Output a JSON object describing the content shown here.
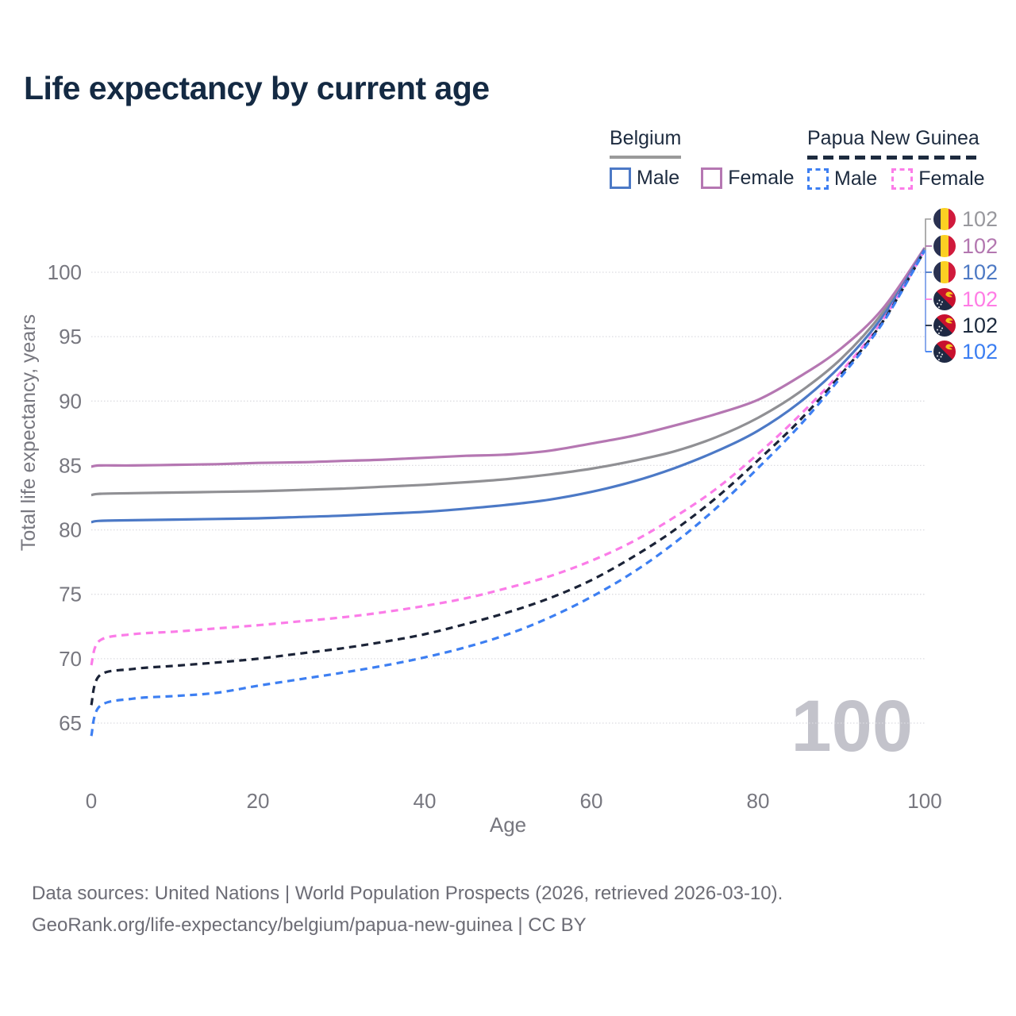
{
  "title": "Life expectancy by current age",
  "legend": {
    "belgium": {
      "label": "Belgium",
      "male": "Male",
      "female": "Female"
    },
    "png": {
      "label": "Papua New Guinea",
      "male": "Male",
      "female": "Female"
    }
  },
  "watermark": "100",
  "footer": {
    "line1": "Data sources: United Nations | World Population Prospects (2026, retrieved 2026-03-10).",
    "line2": "GeoRank.org/life-expectancy/belgium/papua-new-guinea | CC BY"
  },
  "colors": {
    "title_text": "#142a43",
    "legend_text": "#1d2b3f",
    "axis_text": "#77777f",
    "grid": "#dcdce1",
    "footer_text": "#6c6c75",
    "watermark": "#c3c3cb",
    "belgium_underline": "#9a9a9a",
    "png_underline": "#1d2b3f",
    "connector": "#6e95e8",
    "connector_top": "#9a9a9a"
  },
  "chart_data": {
    "type": "line",
    "title": "Life expectancy by current age",
    "xlabel": "Age",
    "ylabel": "Total life expectancy, years",
    "xlim": [
      0,
      100
    ],
    "ylim": [
      63.5,
      103
    ],
    "xticks": [
      0,
      20,
      40,
      60,
      80,
      100
    ],
    "yticks": [
      65,
      70,
      75,
      80,
      85,
      90,
      95,
      100
    ],
    "grid": "horizontal-dotted",
    "legend_position": "top-right",
    "frame_label": "100",
    "x": [
      0,
      1,
      5,
      10,
      15,
      20,
      25,
      30,
      35,
      40,
      45,
      50,
      55,
      60,
      65,
      70,
      75,
      80,
      85,
      90,
      95,
      100
    ],
    "series": [
      {
        "id": "belgium-total",
        "name": "Belgium",
        "country": "Belgium",
        "sex": "both",
        "flag": "belgium",
        "color": "#909094",
        "dash": false,
        "end_label": "102",
        "end_label_color": "#98989d",
        "label_slot": 0,
        "values": [
          82.7,
          82.8,
          82.85,
          82.9,
          82.95,
          83.0,
          83.1,
          83.2,
          83.35,
          83.5,
          83.7,
          83.95,
          84.3,
          84.75,
          85.35,
          86.1,
          87.2,
          88.7,
          90.7,
          93.3,
          96.9,
          101.8
        ]
      },
      {
        "id": "belgium-female",
        "name": "Belgium Female",
        "country": "Belgium",
        "sex": "female",
        "flag": "belgium",
        "color": "#b577b2",
        "dash": false,
        "end_label": "102",
        "end_label_color": "#b377b0",
        "label_slot": 1,
        "values": [
          84.9,
          85.0,
          85.0,
          85.05,
          85.1,
          85.2,
          85.25,
          85.35,
          85.45,
          85.6,
          85.75,
          85.85,
          86.15,
          86.7,
          87.3,
          88.1,
          89.0,
          90.1,
          91.9,
          94.1,
          97.2,
          101.9
        ]
      },
      {
        "id": "belgium-male",
        "name": "Belgium Male",
        "country": "Belgium",
        "sex": "male",
        "flag": "belgium",
        "color": "#4c79c6",
        "dash": false,
        "end_label": "102",
        "end_label_color": "#4d79c4",
        "label_slot": 2,
        "values": [
          80.6,
          80.7,
          80.75,
          80.8,
          80.85,
          80.9,
          81.0,
          81.1,
          81.25,
          81.4,
          81.65,
          81.95,
          82.35,
          82.95,
          83.75,
          84.8,
          86.1,
          87.7,
          89.9,
          92.8,
          96.6,
          101.8
        ]
      },
      {
        "id": "png-female",
        "name": "Papua New Guinea Female",
        "country": "Papua New Guinea",
        "sex": "female",
        "flag": "png",
        "color": "#fb7ce8",
        "dash": true,
        "end_label": "102",
        "end_label_color": "#ff7ce5",
        "label_slot": 3,
        "values": [
          69.5,
          71.4,
          71.9,
          72.1,
          72.35,
          72.6,
          72.9,
          73.2,
          73.6,
          74.1,
          74.7,
          75.5,
          76.4,
          77.6,
          79.1,
          81.0,
          83.2,
          85.9,
          88.9,
          92.3,
          96.3,
          101.7
        ]
      },
      {
        "id": "png-total",
        "name": "Papua New Guinea",
        "country": "Papua New Guinea",
        "sex": "both",
        "flag": "png",
        "color": "#1b2337",
        "dash": true,
        "end_label": "102",
        "end_label_color": "#1d2b3f",
        "label_slot": 4,
        "values": [
          66.4,
          68.7,
          69.2,
          69.45,
          69.7,
          70.0,
          70.4,
          70.8,
          71.3,
          71.9,
          72.7,
          73.6,
          74.7,
          76.1,
          77.9,
          80.0,
          82.5,
          85.4,
          88.5,
          92.1,
          96.2,
          101.7
        ]
      },
      {
        "id": "png-male",
        "name": "Papua New Guinea Male",
        "country": "Papua New Guinea",
        "sex": "male",
        "flag": "png",
        "color": "#3d7ff2",
        "dash": true,
        "end_label": "102",
        "end_label_color": "#3b7ef2",
        "label_slot": 5,
        "values": [
          64.0,
          66.3,
          66.9,
          67.1,
          67.35,
          67.9,
          68.4,
          68.9,
          69.45,
          70.1,
          70.9,
          71.9,
          73.2,
          74.8,
          76.7,
          79.0,
          81.7,
          84.8,
          88.1,
          91.9,
          96.1,
          101.7
        ]
      }
    ]
  }
}
